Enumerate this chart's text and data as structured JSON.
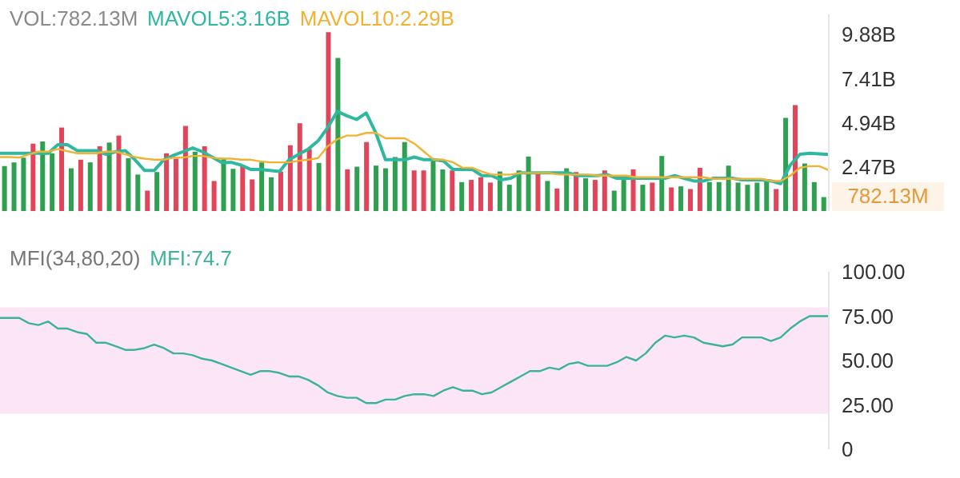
{
  "chart_data": [
    {
      "type": "bar",
      "categories": [
        null,
        null,
        null,
        null,
        null,
        null,
        null,
        null,
        null,
        null,
        null,
        null,
        null,
        null,
        null,
        null,
        null,
        null,
        null,
        null,
        null,
        null,
        null,
        null,
        null,
        null,
        null,
        null,
        null,
        null,
        null,
        null,
        null,
        null,
        null,
        null,
        null,
        null,
        null,
        null,
        null,
        null,
        null,
        null,
        null,
        null,
        null,
        null,
        null,
        null,
        null,
        null,
        null,
        null,
        null,
        null,
        null,
        null,
        null,
        null,
        null,
        null,
        null,
        null,
        null,
        null,
        null,
        null,
        null,
        null,
        null,
        null,
        null,
        null,
        null,
        null,
        null,
        null,
        null,
        null,
        null,
        null,
        null,
        null,
        null,
        null,
        null
      ],
      "ylim": [
        0,
        11
      ],
      "yticks": [
        {
          "value": 2.47,
          "label": "2.47B"
        },
        {
          "value": 4.94,
          "label": "4.94B"
        },
        {
          "value": 7.41,
          "label": "7.41B"
        },
        {
          "value": 9.88,
          "label": "9.88B"
        }
      ],
      "annotations": [
        "782.13M"
      ],
      "series": [
        {
          "name": "VOL:782.13M",
          "values": [
            2.51,
            2.72,
            2.99,
            3.77,
            3.89,
            3.23,
            4.67,
            2.39,
            2.87,
            2.72,
            3.62,
            3.83,
            4.22,
            2.96,
            2.04,
            1.14,
            2.18,
            3.23,
            2.93,
            4.76,
            3.32,
            3.62,
            1.68,
            2.96,
            2.36,
            2.57,
            1.77,
            2.72,
            1.89,
            2.21,
            3.68,
            4.91,
            3.47,
            2.69,
            10.0,
            8.56,
            2.33,
            2.48,
            3.86,
            2.54,
            2.39,
            3.02,
            3.86,
            2.27,
            2.27,
            2.81,
            2.33,
            2.27,
            1.62,
            1.74,
            1.89,
            1.59,
            2.21,
            1.47,
            2.27,
            3.05,
            2.18,
            1.68,
            1.26,
            2.39,
            2.18,
            1.83,
            1.74,
            2.27,
            1.14,
            1.74,
            2.33,
            1.47,
            1.59,
            3.08,
            1.32,
            1.38,
            1.23,
            2.42,
            1.62,
            1.62,
            2.54,
            1.59,
            1.47,
            1.59,
            1.68,
            1.23,
            5.21,
            5.93,
            2.66,
            1.62,
            0.78
          ],
          "colors": [
            "#2ea04f",
            "#2ea04f",
            "#2ea04f",
            "#e0455a",
            "#2ea04f",
            "#2ea04f",
            "#e0455a",
            "#2ea04f",
            "#e0455a",
            "#2ea04f",
            "#e0455a",
            "#2ea04f",
            "#e0455a",
            "#2ea04f",
            "#2ea04f",
            "#e0455a",
            "#2ea04f",
            "#e0455a",
            "#e0455a",
            "#e0455a",
            "#2ea04f",
            "#e0455a",
            "#e0455a",
            "#2ea04f",
            "#2ea04f",
            "#e0455a",
            "#e0455a",
            "#2ea04f",
            "#2ea04f",
            "#e0455a",
            "#e0455a",
            "#e0455a",
            "#e0455a",
            "#2ea04f",
            "#e0455a",
            "#2ea04f",
            "#e0455a",
            "#2ea04f",
            "#e0455a",
            "#2ea04f",
            "#2ea04f",
            "#2ea04f",
            "#2ea04f",
            "#e0455a",
            "#e0455a",
            "#2ea04f",
            "#2ea04f",
            "#e0455a",
            "#2ea04f",
            "#e0455a",
            "#e0455a",
            "#e0455a",
            "#2ea04f",
            "#2ea04f",
            "#2ea04f",
            "#2ea04f",
            "#e0455a",
            "#2ea04f",
            "#e0455a",
            "#2ea04f",
            "#e0455a",
            "#2ea04f",
            "#e0455a",
            "#e0455a",
            "#2ea04f",
            "#2ea04f",
            "#e0455a",
            "#2ea04f",
            "#e0455a",
            "#2ea04f",
            "#e0455a",
            "#2ea04f",
            "#e0455a",
            "#e0455a",
            "#2ea04f",
            "#2ea04f",
            "#2ea04f",
            "#2ea04f",
            "#2ea04f",
            "#2ea04f",
            "#2ea04f",
            "#e0455a",
            "#2ea04f",
            "#e0455a",
            "#2ea04f",
            "#2ea04f",
            "#2ea04f"
          ],
          "color": "#8a8a8a"
        }
      ]
    },
    {
      "type": "line",
      "categories": [
        null,
        null,
        null,
        null,
        null,
        null,
        null,
        null,
        null,
        null,
        null,
        null,
        null,
        null,
        null,
        null,
        null,
        null,
        null,
        null,
        null,
        null,
        null,
        null,
        null,
        null,
        null,
        null,
        null,
        null,
        null,
        null,
        null,
        null,
        null,
        null,
        null,
        null,
        null,
        null,
        null,
        null,
        null,
        null,
        null,
        null,
        null,
        null,
        null,
        null,
        null,
        null,
        null,
        null,
        null,
        null,
        null,
        null,
        null,
        null,
        null,
        null,
        null,
        null,
        null,
        null,
        null,
        null,
        null,
        null,
        null,
        null,
        null,
        null,
        null,
        null,
        null,
        null,
        null,
        null,
        null,
        null,
        null,
        null,
        null,
        null,
        null
      ],
      "ylim": [
        0,
        11
      ],
      "series": [
        {
          "name": "MAVOL5:3.16B",
          "color": "#2fb8a0",
          "values": [
            3.23,
            3.23,
            3.23,
            3.23,
            3.23,
            3.23,
            3.71,
            3.71,
            3.38,
            3.38,
            3.38,
            3.17,
            3.32,
            3.38,
            2.87,
            2.27,
            2.27,
            2.87,
            3.11,
            3.32,
            3.53,
            3.32,
            3.02,
            2.72,
            2.72,
            2.57,
            2.33,
            2.33,
            2.27,
            2.21,
            2.87,
            3.17,
            3.47,
            3.92,
            4.67,
            5.57,
            5.33,
            5.12,
            5.48,
            4.37,
            2.87,
            2.87,
            2.87,
            3.02,
            2.87,
            2.87,
            2.81,
            2.33,
            2.33,
            2.33,
            1.98,
            1.98,
            1.74,
            1.83,
            2.13,
            2.13,
            2.13,
            2.13,
            2.13,
            2.13,
            1.98,
            1.98,
            1.98,
            2.04,
            1.83,
            1.83,
            1.83,
            1.83,
            1.83,
            1.83,
            1.98,
            1.83,
            1.68,
            1.68,
            1.83,
            1.83,
            1.83,
            1.74,
            1.74,
            1.74,
            1.68,
            1.53,
            2.57,
            3.17,
            3.23,
            3.2,
            3.16
          ]
        },
        {
          "name": "MAVOL10:2.29B",
          "color": "#f0b232",
          "values": [
            3.02,
            3.02,
            2.99,
            3.17,
            3.32,
            3.32,
            3.47,
            3.35,
            3.23,
            3.23,
            3.23,
            3.32,
            3.32,
            3.17,
            3.02,
            2.93,
            2.87,
            2.87,
            2.99,
            2.99,
            3.08,
            3.08,
            2.99,
            2.93,
            2.93,
            2.87,
            2.87,
            2.78,
            2.72,
            2.72,
            2.72,
            2.81,
            2.87,
            2.96,
            3.62,
            4.01,
            4.22,
            4.22,
            4.37,
            4.37,
            4.07,
            4.07,
            4.07,
            3.77,
            3.32,
            2.87,
            2.87,
            2.72,
            2.42,
            2.42,
            2.21,
            2.04,
            2.04,
            2.04,
            2.13,
            2.13,
            2.13,
            2.13,
            2.04,
            2.04,
            2.04,
            2.04,
            1.98,
            1.98,
            1.98,
            1.98,
            1.89,
            1.89,
            1.89,
            1.89,
            1.89,
            1.89,
            1.89,
            1.89,
            1.8,
            1.8,
            1.8,
            1.8,
            1.8,
            1.8,
            1.68,
            1.68,
            1.98,
            2.42,
            2.51,
            2.51,
            2.29
          ]
        }
      ]
    },
    {
      "type": "line",
      "title": "MFI(34,80,20)",
      "categories": [
        null,
        null,
        null,
        null,
        null,
        null,
        null,
        null,
        null,
        null,
        null,
        null,
        null,
        null,
        null,
        null,
        null,
        null,
        null,
        null,
        null,
        null,
        null,
        null,
        null,
        null,
        null,
        null,
        null,
        null,
        null,
        null,
        null,
        null,
        null,
        null,
        null,
        null,
        null,
        null,
        null,
        null,
        null,
        null,
        null,
        null,
        null,
        null,
        null,
        null,
        null,
        null,
        null,
        null,
        null,
        null,
        null,
        null,
        null,
        null,
        null,
        null,
        null,
        null,
        null,
        null,
        null,
        null,
        null,
        null,
        null,
        null,
        null,
        null,
        null,
        null,
        null,
        null,
        null,
        null,
        null,
        null,
        null,
        null,
        null,
        null,
        null
      ],
      "ylim": [
        0,
        100
      ],
      "yticks": [
        0,
        {
          "value": 25,
          "label": "25.00"
        },
        {
          "value": 50,
          "label": "50.00"
        },
        {
          "value": 75,
          "label": "75.00"
        },
        {
          "value": 100,
          "label": "100.00"
        }
      ],
      "bands": [
        {
          "axis": "y",
          "from": 20,
          "to": 80,
          "color": "#fce6f6"
        }
      ],
      "series": [
        {
          "name": "MFI:74.7",
          "color": "#3bb39a",
          "values": [
            74,
            74,
            74,
            71,
            70,
            72,
            68,
            68,
            66,
            65,
            60,
            60,
            58,
            56,
            56,
            57,
            59,
            57,
            54,
            54,
            53,
            51,
            50,
            48,
            46,
            44,
            42,
            44,
            44,
            43,
            41,
            41,
            39,
            36,
            32,
            30,
            29,
            29,
            26,
            26,
            28,
            28,
            30,
            31,
            31,
            30,
            33,
            35,
            33,
            33,
            31,
            32,
            35,
            38,
            41,
            44,
            44,
            46,
            45,
            48,
            49,
            47,
            47,
            47,
            49,
            52,
            50,
            54,
            60,
            64,
            63,
            64,
            63,
            60,
            59,
            58,
            59,
            63,
            63,
            63,
            61,
            63,
            68,
            72,
            75,
            75,
            75
          ]
        }
      ]
    }
  ]
}
